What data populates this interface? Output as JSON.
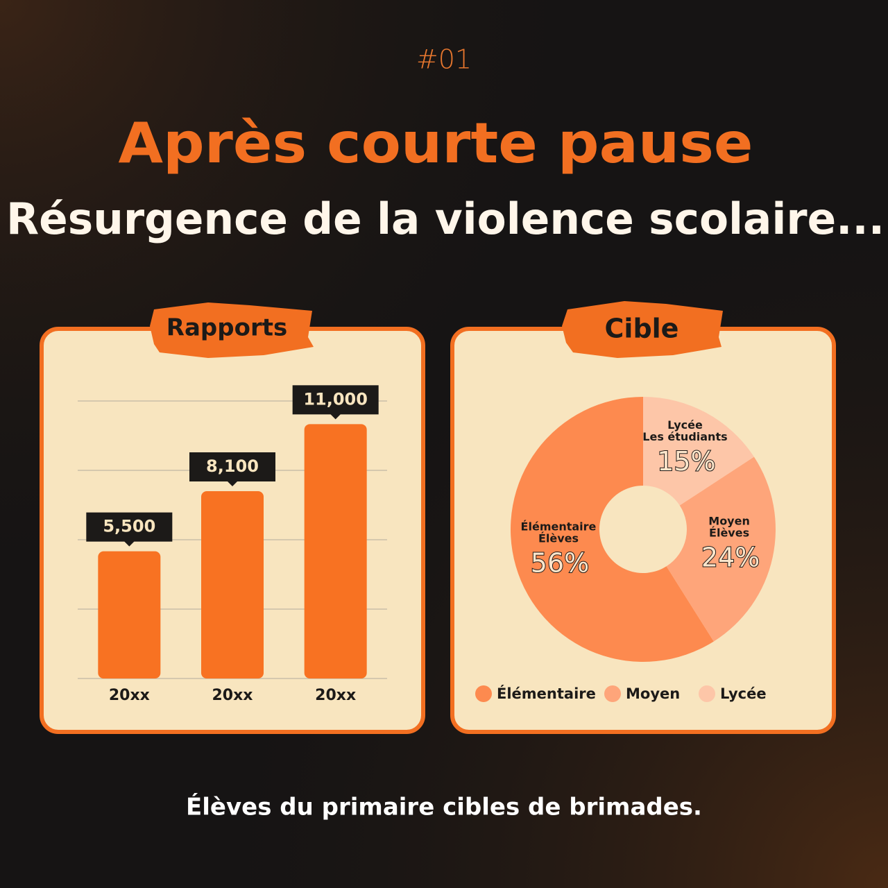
{
  "header": {
    "number": "#01",
    "title": "Après courte pause",
    "subtitle": "Résurgence de la violence scolaire..."
  },
  "chart_data": [
    {
      "type": "bar",
      "title": "Rapports",
      "categories": [
        "20xx",
        "20xx",
        "20xx"
      ],
      "values": [
        5500,
        8100,
        11000
      ],
      "value_labels": [
        "5,500",
        "8,100",
        "11,000"
      ],
      "color": "#f87222",
      "ylim": [
        0,
        12000
      ],
      "yticks": [
        0,
        3000,
        6000,
        9000,
        12000
      ],
      "grid": true
    },
    {
      "type": "pie",
      "title": "Cible",
      "categories": [
        "Élémentaire",
        "Moyen",
        "Lycée"
      ],
      "values": [
        56,
        24,
        15
      ],
      "value_labels": [
        "56%",
        "24%",
        "15%"
      ],
      "slice_labels": [
        [
          "Élémentaire",
          "Élèves"
        ],
        [
          "Moyen",
          "Élèves"
        ],
        [
          "Lycée",
          "Les étudiants"
        ]
      ],
      "colors": [
        "#fd8a4f",
        "#fea57a",
        "#fdc6a8"
      ],
      "legend": "bottom"
    }
  ],
  "footer": "Élèves du primaire cibles de brimades."
}
